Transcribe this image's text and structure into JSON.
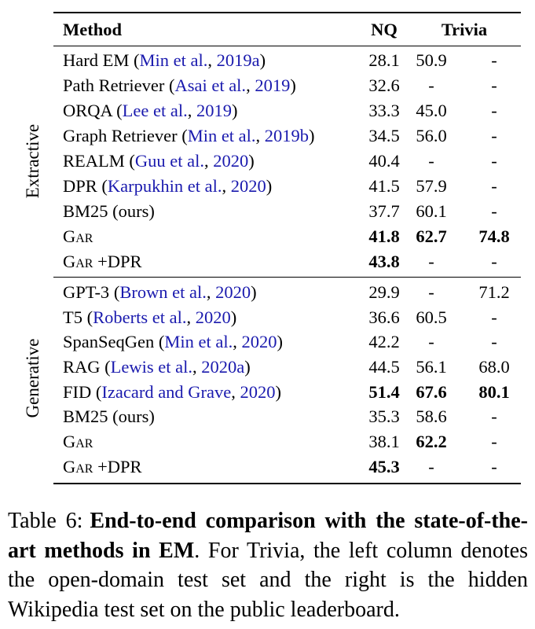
{
  "colors": {
    "text": "#000000",
    "citation": "#1a1aae",
    "rule": "#000000",
    "background": "#ffffff"
  },
  "table": {
    "header": {
      "method": "Method",
      "nq": "NQ",
      "trivia": "Trivia"
    },
    "sections": [
      {
        "label": "Extractive",
        "rows": [
          {
            "name": "Hard EM",
            "sc": false,
            "suffix": "",
            "cite_authors": "Min et al.",
            "cite_year": "2019a",
            "note": "",
            "values": [
              {
                "v": "28.1",
                "b": false
              },
              {
                "v": "50.9",
                "b": false
              },
              {
                "v": "-",
                "b": false
              }
            ]
          },
          {
            "name": "Path Retriever",
            "sc": false,
            "suffix": "",
            "cite_authors": "Asai et al.",
            "cite_year": "2019",
            "note": "",
            "values": [
              {
                "v": "32.6",
                "b": false
              },
              {
                "v": "-",
                "b": false
              },
              {
                "v": "-",
                "b": false
              }
            ]
          },
          {
            "name": "ORQA",
            "sc": false,
            "suffix": "",
            "cite_authors": "Lee et al.",
            "cite_year": "2019",
            "note": "",
            "values": [
              {
                "v": "33.3",
                "b": false
              },
              {
                "v": "45.0",
                "b": false
              },
              {
                "v": "-",
                "b": false
              }
            ]
          },
          {
            "name": "Graph Retriever",
            "sc": false,
            "suffix": "",
            "cite_authors": "Min et al.",
            "cite_year": "2019b",
            "note": "",
            "values": [
              {
                "v": "34.5",
                "b": false
              },
              {
                "v": "56.0",
                "b": false
              },
              {
                "v": "-",
                "b": false
              }
            ]
          },
          {
            "name": "REALM",
            "sc": false,
            "suffix": "",
            "cite_authors": "Guu et al.",
            "cite_year": "2020",
            "note": "",
            "values": [
              {
                "v": "40.4",
                "b": false
              },
              {
                "v": "-",
                "b": false
              },
              {
                "v": "-",
                "b": false
              }
            ]
          },
          {
            "name": "DPR",
            "sc": false,
            "suffix": "",
            "cite_authors": "Karpukhin et al.",
            "cite_year": "2020",
            "note": "",
            "values": [
              {
                "v": "41.5",
                "b": false
              },
              {
                "v": "57.9",
                "b": false
              },
              {
                "v": "-",
                "b": false
              }
            ]
          },
          {
            "name": "BM25",
            "sc": false,
            "suffix": "",
            "cite_authors": "",
            "cite_year": "",
            "note": "ours",
            "values": [
              {
                "v": "37.7",
                "b": false
              },
              {
                "v": "60.1",
                "b": false
              },
              {
                "v": "-",
                "b": false
              }
            ]
          },
          {
            "name": "Gar",
            "sc": true,
            "suffix": "",
            "cite_authors": "",
            "cite_year": "",
            "note": "",
            "values": [
              {
                "v": "41.8",
                "b": true
              },
              {
                "v": "62.7",
                "b": true
              },
              {
                "v": "74.8",
                "b": true
              }
            ]
          },
          {
            "name": "Gar",
            "sc": true,
            "suffix": "+DPR",
            "cite_authors": "",
            "cite_year": "",
            "note": "",
            "values": [
              {
                "v": "43.8",
                "b": true
              },
              {
                "v": "-",
                "b": false
              },
              {
                "v": "-",
                "b": false
              }
            ]
          }
        ]
      },
      {
        "label": "Generative",
        "rows": [
          {
            "name": "GPT-3",
            "sc": false,
            "suffix": "",
            "cite_authors": "Brown et al.",
            "cite_year": "2020",
            "note": "",
            "values": [
              {
                "v": "29.9",
                "b": false
              },
              {
                "v": "-",
                "b": false
              },
              {
                "v": "71.2",
                "b": false
              }
            ]
          },
          {
            "name": "T5",
            "sc": false,
            "suffix": "",
            "cite_authors": "Roberts et al.",
            "cite_year": "2020",
            "note": "",
            "values": [
              {
                "v": "36.6",
                "b": false
              },
              {
                "v": "60.5",
                "b": false
              },
              {
                "v": "-",
                "b": false
              }
            ]
          },
          {
            "name": "SpanSeqGen",
            "sc": false,
            "suffix": "",
            "cite_authors": "Min et al.",
            "cite_year": "2020",
            "note": "",
            "values": [
              {
                "v": "42.2",
                "b": false
              },
              {
                "v": "-",
                "b": false
              },
              {
                "v": "-",
                "b": false
              }
            ]
          },
          {
            "name": "RAG",
            "sc": false,
            "suffix": "",
            "cite_authors": "Lewis et al.",
            "cite_year": "2020a",
            "note": "",
            "values": [
              {
                "v": "44.5",
                "b": false
              },
              {
                "v": "56.1",
                "b": false
              },
              {
                "v": "68.0",
                "b": false
              }
            ]
          },
          {
            "name": "FID",
            "sc": false,
            "suffix": "",
            "cite_authors": "Izacard and Grave",
            "cite_year": "2020",
            "note": "",
            "values": [
              {
                "v": "51.4",
                "b": true
              },
              {
                "v": "67.6",
                "b": true
              },
              {
                "v": "80.1",
                "b": true
              }
            ]
          },
          {
            "name": "BM25",
            "sc": false,
            "suffix": "",
            "cite_authors": "",
            "cite_year": "",
            "note": "ours",
            "values": [
              {
                "v": "35.3",
                "b": false
              },
              {
                "v": "58.6",
                "b": false
              },
              {
                "v": "-",
                "b": false
              }
            ]
          },
          {
            "name": "Gar",
            "sc": true,
            "suffix": "",
            "cite_authors": "",
            "cite_year": "",
            "note": "",
            "values": [
              {
                "v": "38.1",
                "b": false
              },
              {
                "v": "62.2",
                "b": true
              },
              {
                "v": "-",
                "b": false
              }
            ]
          },
          {
            "name": "Gar",
            "sc": true,
            "suffix": "+DPR",
            "cite_authors": "",
            "cite_year": "",
            "note": "",
            "values": [
              {
                "v": "45.3",
                "b": true
              },
              {
                "v": "-",
                "b": false
              },
              {
                "v": "-",
                "b": false
              }
            ]
          }
        ]
      }
    ]
  },
  "caption": {
    "prefix": "Table 6:",
    "bold": "End-to-end comparison with the state-of-the-art methods in EM",
    "rest": ". For Trivia, the left column denotes the open-domain test set and the right is the hidden Wikipedia test set on the public leaderboard."
  }
}
